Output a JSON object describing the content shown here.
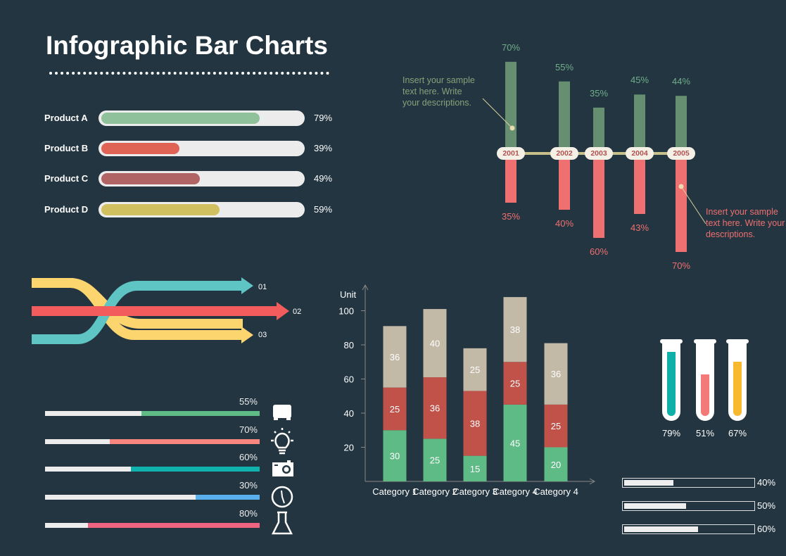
{
  "title": "Infographic Bar Charts",
  "colors": {
    "background": "#233540",
    "green": "#5fbb85",
    "red": "#c0524a",
    "beige": "#c2b9a7"
  },
  "chart_data": [
    {
      "type": "bar",
      "orientation": "horizontal",
      "categories": [
        "Product A",
        "Product B",
        "Product C",
        "Product D"
      ],
      "values": [
        79,
        39,
        49,
        59
      ],
      "labels": [
        "79%",
        "39%",
        "49%",
        "59%"
      ],
      "colors": [
        "#8fc19a",
        "#e06456",
        "#b06464",
        "#d0c060"
      ],
      "xlim": [
        0,
        100
      ]
    },
    {
      "type": "bar",
      "categories": [
        "2001",
        "2002",
        "2003",
        "2004",
        "2005"
      ],
      "series": [
        {
          "values": [
            70,
            55,
            35,
            45,
            44
          ],
          "labels": [
            "70%",
            "55%",
            "35%",
            "45%",
            "44%"
          ],
          "color": "#658f70",
          "direction": "up"
        },
        {
          "values": [
            35,
            40,
            60,
            43,
            70
          ],
          "labels": [
            "35%",
            "40%",
            "60%",
            "43%",
            "70%"
          ],
          "color": "#ef7070",
          "direction": "down"
        }
      ],
      "annotations": [
        {
          "text": "Insert your sample text here. Write your descriptions.",
          "target": "2001",
          "color": "#8aa07a"
        },
        {
          "text": "Insert your sample text here. Write your descriptions.",
          "target": "2005",
          "color": "#ef7070"
        }
      ]
    },
    {
      "type": "bar",
      "stacked": true,
      "ylabel": "Unit",
      "ylim": [
        0,
        110
      ],
      "yticks": [
        20,
        40,
        60,
        80,
        100
      ],
      "categories": [
        "Category 1",
        "Category 2",
        "Category 3",
        "Category 4",
        "Category 4"
      ],
      "series": [
        {
          "values": [
            30,
            25,
            15,
            45,
            20
          ],
          "color": "#5fbb85"
        },
        {
          "values": [
            25,
            36,
            38,
            25,
            25
          ],
          "color": "#c0524a"
        },
        {
          "values": [
            36,
            40,
            25,
            38,
            36
          ],
          "color": "#c2b9a7"
        }
      ]
    },
    {
      "type": "bar",
      "orientation": "horizontal",
      "values": [
        55,
        70,
        60,
        30,
        80
      ],
      "labels": [
        "55%",
        "70%",
        "60%",
        "30%",
        "80%"
      ],
      "colors": [
        "#5fbb85",
        "#f7877e",
        "#0fb2ad",
        "#5ab0ec",
        "#f06480"
      ],
      "icons": [
        "truck-icon",
        "lightbulb-icon",
        "camera-icon",
        "clock-icon",
        "flask-icon"
      ]
    },
    {
      "type": "bar",
      "style": "test-tubes",
      "values": [
        79,
        51,
        67
      ],
      "labels": [
        "79%",
        "51%",
        "67%"
      ],
      "colors": [
        "#0fb0a8",
        "#f47a7a",
        "#f8b830"
      ]
    },
    {
      "type": "bar",
      "orientation": "horizontal",
      "values": [
        40,
        50,
        60
      ],
      "labels": [
        "40%",
        "50%",
        "60%"
      ]
    }
  ],
  "arrows": {
    "labels": [
      "01",
      "02",
      "03"
    ],
    "colors": [
      "#5ec4c4",
      "#f25c5c",
      "#fdd56e"
    ]
  }
}
